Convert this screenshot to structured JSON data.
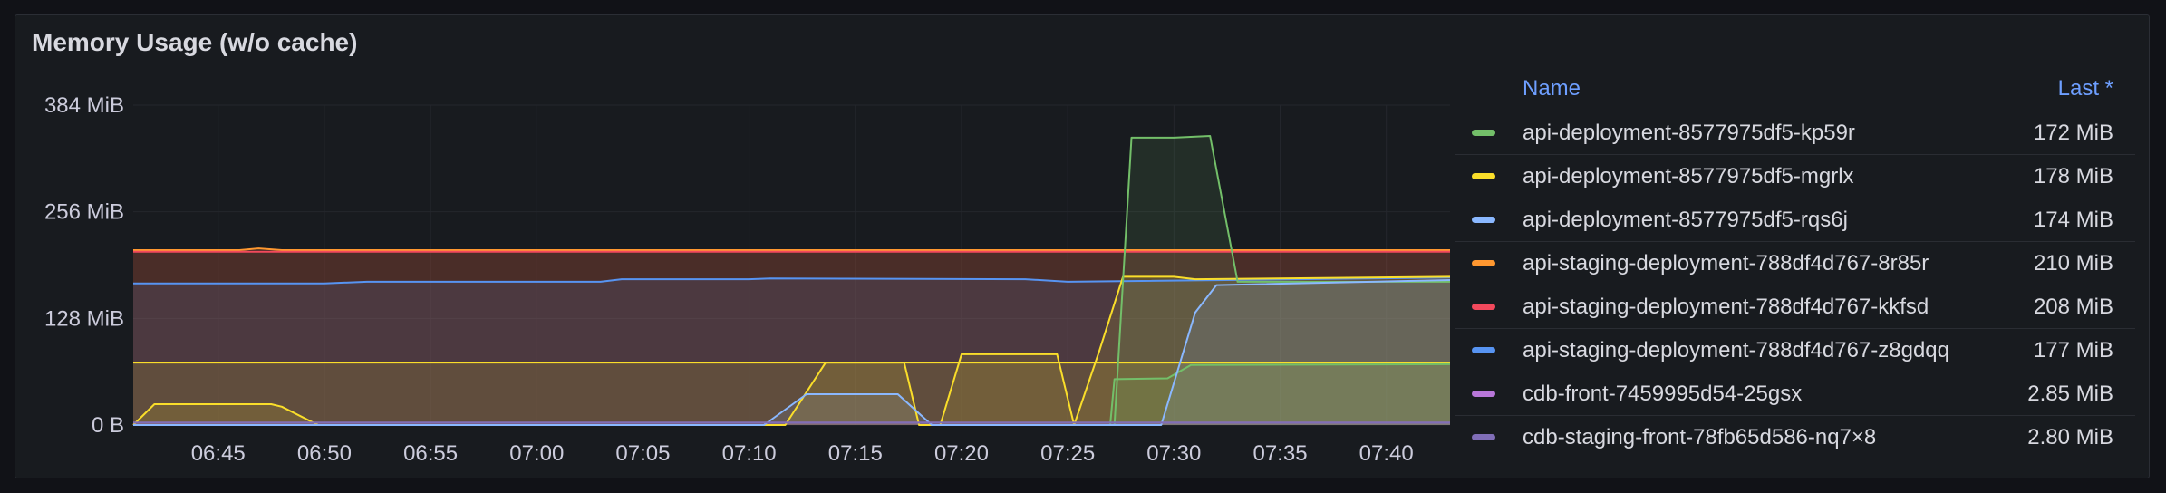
{
  "panel": {
    "title": "Memory Usage (w/o cache)"
  },
  "legend": {
    "name_header": "Name",
    "last_header": "Last *"
  },
  "chart_data": {
    "type": "line",
    "y_axis": {
      "unit": "MiB",
      "min": 0,
      "max": 384,
      "ticks": [
        {
          "value": 0,
          "label": "0 B"
        },
        {
          "value": 128,
          "label": "128 MiB"
        },
        {
          "value": 256,
          "label": "256 MiB"
        },
        {
          "value": 384,
          "label": "384 MiB"
        }
      ]
    },
    "x_axis": {
      "min": "06:41",
      "max": "07:43",
      "ticks": [
        "06:45",
        "06:50",
        "06:55",
        "07:00",
        "07:05",
        "07:10",
        "07:15",
        "07:20",
        "07:25",
        "07:30",
        "07:35",
        "07:40"
      ]
    },
    "grid": true,
    "fill_area": true,
    "legend_placement": "right",
    "series": [
      {
        "name": "api-deployment-8577975df5-kp59r",
        "color": "#73bf69",
        "last": "172 MiB",
        "points": [
          [
            "07:27",
            0
          ],
          [
            "07:27.2",
            55
          ],
          [
            "07:29.7",
            56
          ],
          [
            "07:30.8",
            72
          ],
          [
            "07:43",
            73
          ],
          [
            "07:27.2",
            0
          ],
          [
            "07:28",
            345
          ],
          [
            "07:30",
            345
          ],
          [
            "07:31.7",
            347
          ],
          [
            "07:33",
            172
          ],
          [
            "07:43",
            172
          ]
        ],
        "segments": [
          [
            [
              "07:27",
              0
            ],
            [
              "07:27.2",
              55
            ],
            [
              "07:29.7",
              56
            ],
            [
              "07:30.8",
              72
            ],
            [
              "07:43",
              73
            ]
          ],
          [
            [
              "07:27.2",
              0
            ],
            [
              "07:28",
              345
            ],
            [
              "07:30",
              345
            ],
            [
              "07:31.7",
              347
            ],
            [
              "07:33",
              172
            ],
            [
              "07:43",
              172
            ]
          ]
        ]
      },
      {
        "name": "api-deployment-8577975df5-mgrlx",
        "color": "#fade2a",
        "last": "178 MiB",
        "segments": [
          [
            [
              "06:41",
              75
            ],
            [
              "07:43",
              75
            ]
          ],
          [
            [
              "06:41",
              0
            ],
            [
              "06:42",
              25
            ],
            [
              "06:45",
              25
            ],
            [
              "06:47.5",
              25
            ],
            [
              "06:48",
              22
            ],
            [
              "06:49.7",
              0
            ],
            [
              "07:11.7",
              0
            ],
            [
              "07:13.6",
              75
            ],
            [
              "07:17.3",
              75
            ],
            [
              "07:18",
              0
            ],
            [
              "07:19",
              0
            ],
            [
              "07:20",
              85
            ],
            [
              "07:24.5",
              85
            ],
            [
              "07:25.3",
              0
            ],
            [
              "07:26.5",
              90
            ],
            [
              "07:27.6",
              178
            ],
            [
              "07:30",
              178
            ],
            [
              "07:31",
              175
            ],
            [
              "07:43",
              178
            ]
          ]
        ]
      },
      {
        "name": "api-deployment-8577975df5-rqs6j",
        "color": "#8ab8ff",
        "last": "174 MiB",
        "segments": [
          [
            [
              "06:41",
              0
            ],
            [
              "07:10.7",
              0
            ],
            [
              "07:12.7",
              37
            ],
            [
              "07:17",
              37
            ],
            [
              "07:18.6",
              0
            ],
            [
              "07:29.4",
              0
            ],
            [
              "07:31",
              135
            ],
            [
              "07:32",
              168
            ],
            [
              "07:43",
              174
            ]
          ]
        ]
      },
      {
        "name": "api-staging-deployment-788df4d767-8r85r",
        "color": "#ff9830",
        "last": "210 MiB",
        "segments": [
          [
            [
              "06:41",
              210
            ],
            [
              "06:46",
              210
            ],
            [
              "06:46.9",
              212
            ],
            [
              "06:48",
              210
            ],
            [
              "07:43",
              210
            ]
          ]
        ]
      },
      {
        "name": "api-staging-deployment-788df4d767-kkfsd",
        "color": "#f2495c",
        "last": "208 MiB",
        "segments": [
          [
            [
              "06:41",
              208
            ],
            [
              "07:43",
              208
            ]
          ]
        ]
      },
      {
        "name": "api-staging-deployment-788df4d767-z8gdqq",
        "color": "#5794f2",
        "last": "177 MiB",
        "segments": [
          [
            [
              "06:41",
              170
            ],
            [
              "06:50",
              170
            ],
            [
              "06:52",
              172
            ],
            [
              "07:03",
              172
            ],
            [
              "07:04",
              175
            ],
            [
              "07:10",
              175
            ],
            [
              "07:11",
              176
            ],
            [
              "07:23",
              175
            ],
            [
              "07:25",
              172
            ],
            [
              "07:43",
              177
            ]
          ]
        ]
      },
      {
        "name": "cdb-front-7459995d54-25gsx",
        "color": "#b877d9",
        "last": "2.85 MiB",
        "segments": [
          [
            [
              "06:41",
              2.85
            ],
            [
              "07:43",
              2.85
            ]
          ]
        ]
      },
      {
        "name": "cdb-staging-front-78fb65d586-nq7×8",
        "color": "#806eb7",
        "last": "2.80 MiB",
        "segments": [
          [
            [
              "06:41",
              2.8
            ],
            [
              "07:43",
              2.8
            ]
          ]
        ]
      }
    ]
  }
}
